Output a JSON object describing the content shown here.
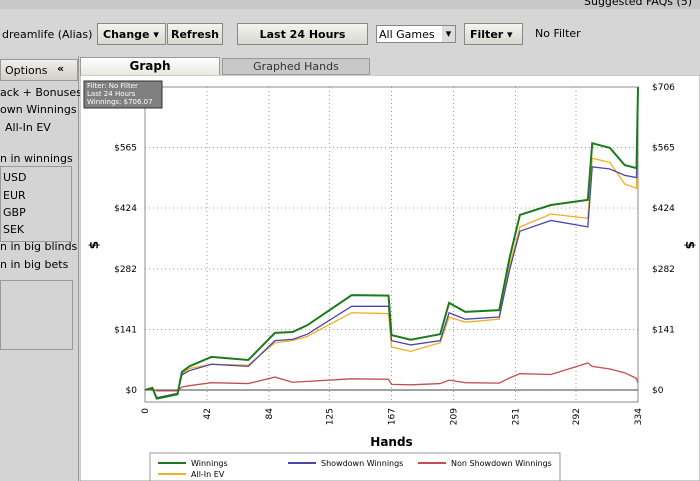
{
  "header": {
    "faq": "Suggested FAQs (5)"
  },
  "toolbar": {
    "alias": "dreamlife (Alias)",
    "change": "Change",
    "refresh": "Refresh",
    "period": "Last  24 Hours",
    "games": "All Games",
    "filter": "Filter",
    "filter_status": "No Filter"
  },
  "sidebar": {
    "title": "Options",
    "collapse": "«",
    "items": [
      "ack + Bonuses",
      "own Winnings",
      "All-In EV",
      "n in winnings"
    ],
    "currencies": [
      "USD",
      "EUR",
      "GBP",
      "SEK"
    ],
    "more": [
      "n in big blinds",
      "n in big bets"
    ]
  },
  "tabs": [
    "Graph",
    "Graphed Hands"
  ],
  "chart_data": {
    "type": "line",
    "xlabel": "Hands",
    "ylabel": "$",
    "annotations": [
      "Filter: No Filter",
      "Last  24 Hours",
      "Winnings: $706.07"
    ],
    "x": [
      0,
      5,
      8,
      22,
      25,
      30,
      45,
      70,
      88,
      100,
      110,
      140,
      165,
      167,
      180,
      200,
      206,
      217,
      240,
      247,
      254,
      275,
      300,
      303,
      315,
      325,
      333,
      334
    ],
    "series": [
      {
        "name": "Winnings",
        "color": "#1c7a1c",
        "values": [
          0,
          5,
          -20,
          -10,
          42,
          55,
          77,
          70,
          133,
          135,
          151,
          221,
          220,
          128,
          117,
          130,
          203,
          182,
          186,
          308,
          408,
          431,
          443,
          575,
          564,
          524,
          517,
          706
        ]
      },
      {
        "name": "Showdown Winnings",
        "color": "#4848a8",
        "values": [
          0,
          3,
          -18,
          -8,
          35,
          45,
          60,
          55,
          115,
          118,
          130,
          195,
          195,
          115,
          105,
          115,
          180,
          165,
          170,
          280,
          370,
          395,
          380,
          520,
          515,
          500,
          495,
          690
        ]
      },
      {
        "name": "Non Showdown Winnings",
        "color": "#c05050",
        "values": [
          0,
          2,
          -2,
          -2,
          7,
          10,
          17,
          15,
          30,
          18,
          20,
          26,
          25,
          13,
          12,
          15,
          23,
          17,
          16,
          28,
          38,
          36,
          63,
          55,
          49,
          40,
          27,
          16
        ]
      },
      {
        "name": "All-In EV",
        "color": "#f0b020",
        "values": [
          0,
          4,
          -18,
          -8,
          38,
          50,
          60,
          58,
          110,
          115,
          125,
          180,
          178,
          100,
          90,
          110,
          170,
          158,
          165,
          290,
          380,
          410,
          400,
          540,
          530,
          480,
          470,
          700
        ]
      }
    ],
    "xlim": [
      0,
      334
    ],
    "xticks": [
      0,
      42,
      84,
      125,
      167,
      209,
      251,
      292,
      334
    ],
    "ylim": [
      -28,
      706
    ],
    "yticks": [
      {
        "value": 0,
        "label": "$0"
      },
      {
        "value": 141,
        "label": "$141"
      },
      {
        "value": 282,
        "label": "$282"
      },
      {
        "value": 424,
        "label": "$424"
      },
      {
        "value": 565,
        "label": "$565"
      },
      {
        "value": 706,
        "label": "$706"
      }
    ],
    "grid": true,
    "legend": "bottom"
  }
}
